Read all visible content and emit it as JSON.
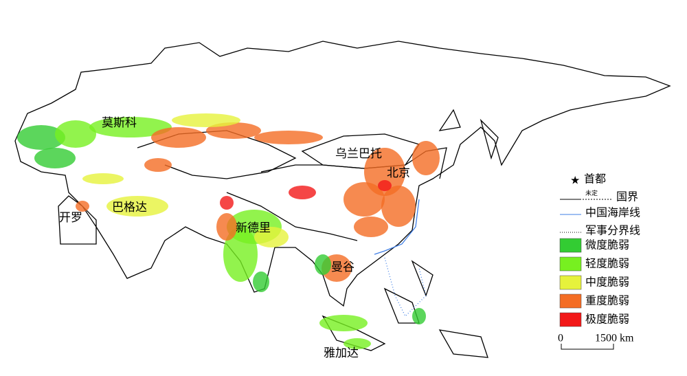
{
  "cities": [
    {
      "label": "莫斯科"
    },
    {
      "label": "乌兰巴托"
    },
    {
      "label": "北京"
    },
    {
      "label": "巴格达"
    },
    {
      "label": "开罗"
    },
    {
      "label": "新德里"
    },
    {
      "label": "曼谷"
    },
    {
      "label": "雅加达"
    }
  ],
  "legend": {
    "capital": "首都",
    "undetermined": "未定",
    "border": "国界",
    "coastline": "中国海岸线",
    "military": "军事分界线",
    "classes": [
      {
        "label": "微度脆弱",
        "color": "#33cc33"
      },
      {
        "label": "轻度脆弱",
        "color": "#77f020"
      },
      {
        "label": "中度脆弱",
        "color": "#e6f23c"
      },
      {
        "label": "重度脆弱",
        "color": "#f46d24"
      },
      {
        "label": "极度脆弱",
        "color": "#f21818"
      }
    ]
  },
  "scale": {
    "start": "0",
    "end": "1500 km"
  }
}
